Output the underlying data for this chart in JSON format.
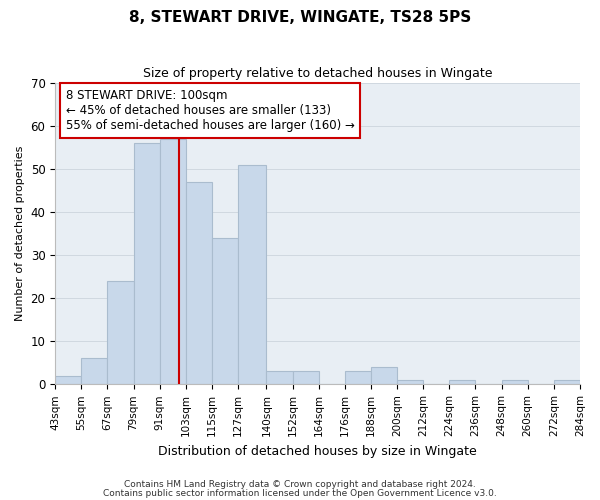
{
  "title": "8, STEWART DRIVE, WINGATE, TS28 5PS",
  "subtitle": "Size of property relative to detached houses in Wingate",
  "xlabel": "Distribution of detached houses by size in Wingate",
  "ylabel": "Number of detached properties",
  "bin_edges": [
    43,
    55,
    67,
    79,
    91,
    103,
    115,
    127,
    140,
    152,
    164,
    176,
    188,
    200,
    212,
    224,
    236,
    248,
    260,
    272,
    284
  ],
  "counts": [
    2,
    6,
    24,
    56,
    57,
    47,
    34,
    51,
    3,
    3,
    0,
    3,
    4,
    1,
    0,
    1,
    0,
    1,
    0,
    1
  ],
  "bar_color": "#c8d8ea",
  "bar_edge_color": "#aabcce",
  "property_line_x": 100,
  "property_line_color": "#cc0000",
  "annotation_line1": "8 STEWART DRIVE: 100sqm",
  "annotation_line2": "← 45% of detached houses are smaller (133)",
  "annotation_line3": "55% of semi-detached houses are larger (160) →",
  "annotation_box_edge": "#cc0000",
  "ylim": [
    0,
    70
  ],
  "yticks": [
    0,
    10,
    20,
    30,
    40,
    50,
    60,
    70
  ],
  "tick_labels": [
    "43sqm",
    "55sqm",
    "67sqm",
    "79sqm",
    "91sqm",
    "103sqm",
    "115sqm",
    "127sqm",
    "140sqm",
    "152sqm",
    "164sqm",
    "176sqm",
    "188sqm",
    "200sqm",
    "212sqm",
    "224sqm",
    "236sqm",
    "248sqm",
    "260sqm",
    "272sqm",
    "284sqm"
  ],
  "footer1": "Contains HM Land Registry data © Crown copyright and database right 2024.",
  "footer2": "Contains public sector information licensed under the Open Government Licence v3.0.",
  "bg_color": "#ffffff",
  "plot_bg_color": "#e8eef4",
  "grid_color": "#d0d8e0",
  "title_fontsize": 11,
  "subtitle_fontsize": 9,
  "ylabel_fontsize": 8,
  "xlabel_fontsize": 9,
  "annotation_fontsize": 8.5,
  "xtick_fontsize": 7.5,
  "ytick_fontsize": 8.5,
  "footer_fontsize": 6.5
}
